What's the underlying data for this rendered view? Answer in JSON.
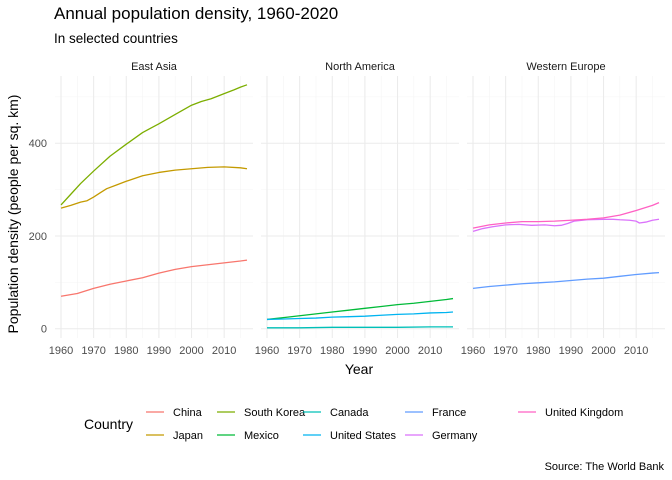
{
  "chart_data": {
    "type": "line",
    "title": "Annual population density, 1960-2020",
    "subtitle": "In selected countries",
    "xlabel": "Year",
    "ylabel": "Population density (people per sq. km)",
    "caption": "Source: The World Bank",
    "legend_title": "Country",
    "legend_position": "bottom",
    "grid": true,
    "xlim": [
      1960,
      2017
    ],
    "ylim": [
      -20,
      545
    ],
    "x_ticks": [
      1960,
      1970,
      1980,
      1990,
      2000,
      2010
    ],
    "y_ticks": [
      0,
      200,
      400
    ],
    "facets": [
      {
        "label": "East Asia",
        "series": [
          {
            "name": "China",
            "color": "#F8766D",
            "points": [
              [
                1960,
                70
              ],
              [
                1965,
                76
              ],
              [
                1970,
                87
              ],
              [
                1975,
                96
              ],
              [
                1980,
                103
              ],
              [
                1985,
                110
              ],
              [
                1990,
                120
              ],
              [
                1995,
                128
              ],
              [
                2000,
                134
              ],
              [
                2005,
                138
              ],
              [
                2010,
                142
              ],
              [
                2015,
                146
              ],
              [
                2017,
                148
              ]
            ]
          },
          {
            "name": "Japan",
            "color": "#C49A00",
            "points": [
              [
                1960,
                260
              ],
              [
                1963,
                266
              ],
              [
                1966,
                273
              ],
              [
                1968,
                276
              ],
              [
                1970,
                284
              ],
              [
                1972,
                293
              ],
              [
                1974,
                302
              ],
              [
                1977,
                310
              ],
              [
                1980,
                318
              ],
              [
                1985,
                330
              ],
              [
                1990,
                337
              ],
              [
                1995,
                342
              ],
              [
                2000,
                345
              ],
              [
                2005,
                348
              ],
              [
                2010,
                349
              ],
              [
                2015,
                347
              ],
              [
                2017,
                345
              ]
            ]
          },
          {
            "name": "South Korea",
            "color": "#7CAE00",
            "points": [
              [
                1960,
                267
              ],
              [
                1963,
                290
              ],
              [
                1966,
                313
              ],
              [
                1970,
                340
              ],
              [
                1975,
                372
              ],
              [
                1980,
                398
              ],
              [
                1985,
                423
              ],
              [
                1990,
                442
              ],
              [
                1995,
                462
              ],
              [
                2000,
                482
              ],
              [
                2003,
                490
              ],
              [
                2006,
                496
              ],
              [
                2010,
                507
              ],
              [
                2013,
                515
              ],
              [
                2015,
                521
              ],
              [
                2017,
                526
              ]
            ]
          }
        ]
      },
      {
        "label": "North America",
        "series": [
          {
            "name": "Mexico",
            "color": "#00BA38",
            "points": [
              [
                1960,
                20
              ],
              [
                1965,
                24
              ],
              [
                1970,
                28
              ],
              [
                1975,
                32
              ],
              [
                1980,
                36
              ],
              [
                1985,
                40
              ],
              [
                1990,
                44
              ],
              [
                1995,
                48
              ],
              [
                2000,
                52
              ],
              [
                2005,
                55
              ],
              [
                2010,
                59
              ],
              [
                2015,
                63
              ],
              [
                2017,
                65
              ]
            ]
          },
          {
            "name": "Canada",
            "color": "#00C0B8",
            "points": [
              [
                1960,
                2
              ],
              [
                1970,
                2
              ],
              [
                1980,
                3
              ],
              [
                1990,
                3
              ],
              [
                2000,
                3
              ],
              [
                2010,
                4
              ],
              [
                2017,
                4
              ]
            ]
          },
          {
            "name": "United States",
            "color": "#00B4F0",
            "points": [
              [
                1960,
                20
              ],
              [
                1965,
                21
              ],
              [
                1970,
                22
              ],
              [
                1975,
                23
              ],
              [
                1980,
                25
              ],
              [
                1985,
                26
              ],
              [
                1990,
                27
              ],
              [
                1995,
                29
              ],
              [
                2000,
                31
              ],
              [
                2005,
                32
              ],
              [
                2010,
                34
              ],
              [
                2015,
                35
              ],
              [
                2017,
                36
              ]
            ]
          }
        ]
      },
      {
        "label": "Western Europe",
        "series": [
          {
            "name": "France",
            "color": "#619CFF",
            "points": [
              [
                1960,
                87
              ],
              [
                1965,
                91
              ],
              [
                1970,
                94
              ],
              [
                1975,
                97
              ],
              [
                1980,
                99
              ],
              [
                1985,
                101
              ],
              [
                1990,
                104
              ],
              [
                1995,
                107
              ],
              [
                2000,
                109
              ],
              [
                2005,
                113
              ],
              [
                2010,
                117
              ],
              [
                2015,
                120
              ],
              [
                2017,
                121
              ]
            ]
          },
          {
            "name": "Germany",
            "color": "#DB72FB",
            "points": [
              [
                1960,
                210
              ],
              [
                1963,
                216
              ],
              [
                1966,
                220
              ],
              [
                1970,
                224
              ],
              [
                1974,
                225
              ],
              [
                1978,
                223
              ],
              [
                1982,
                224
              ],
              [
                1985,
                222
              ],
              [
                1987,
                223
              ],
              [
                1989,
                227
              ],
              [
                1991,
                232
              ],
              [
                1995,
                235
              ],
              [
                2000,
                236
              ],
              [
                2003,
                236
              ],
              [
                2005,
                235
              ],
              [
                2008,
                234
              ],
              [
                2010,
                232
              ],
              [
                2011,
                228
              ],
              [
                2013,
                230
              ],
              [
                2015,
                234
              ],
              [
                2017,
                236
              ]
            ]
          },
          {
            "name": "United Kingdom",
            "color": "#FF61C3",
            "points": [
              [
                1960,
                217
              ],
              [
                1965,
                224
              ],
              [
                1970,
                228
              ],
              [
                1975,
                231
              ],
              [
                1980,
                231
              ],
              [
                1985,
                232
              ],
              [
                1990,
                234
              ],
              [
                1995,
                236
              ],
              [
                2000,
                239
              ],
              [
                2005,
                245
              ],
              [
                2010,
                255
              ],
              [
                2015,
                266
              ],
              [
                2017,
                272
              ]
            ]
          }
        ]
      }
    ]
  }
}
